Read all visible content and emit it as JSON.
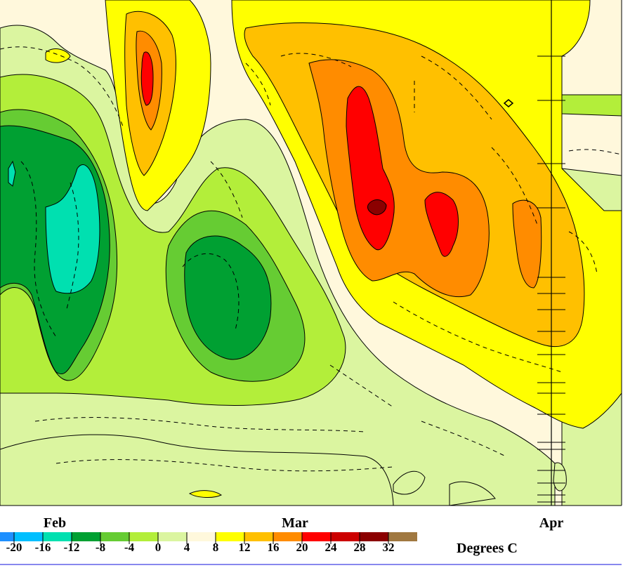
{
  "chart_data": {
    "type": "heatmap",
    "title": "",
    "xlabel": "",
    "ylabel": "",
    "x_ticks": [
      "Feb",
      "Mar",
      "Apr"
    ],
    "colorbar": {
      "unit_label": "Degrees C",
      "levels": [
        -20,
        -16,
        -12,
        -8,
        -4,
        0,
        4,
        8,
        12,
        16,
        20,
        24,
        28,
        32
      ],
      "tick_labels": [
        "-20",
        "-16",
        "-12",
        "-8",
        "-4",
        "0",
        "4",
        "8",
        "12",
        "16",
        "20",
        "24",
        "28",
        "32"
      ],
      "colors": [
        "#1e90ff",
        "#00bfff",
        "#00e0b0",
        "#00a032",
        "#66cc33",
        "#b3ee3a",
        "#dbf5a0",
        "#fff8dc",
        "#ffff00",
        "#ffc000",
        "#ff8c00",
        "#ff0000",
        "#cc0000",
        "#8b0000",
        "#a07840"
      ]
    },
    "grid": false
  },
  "palette": {
    "background": "#ffffff",
    "divider": "#8888ee",
    "contour_line": "#000000"
  }
}
